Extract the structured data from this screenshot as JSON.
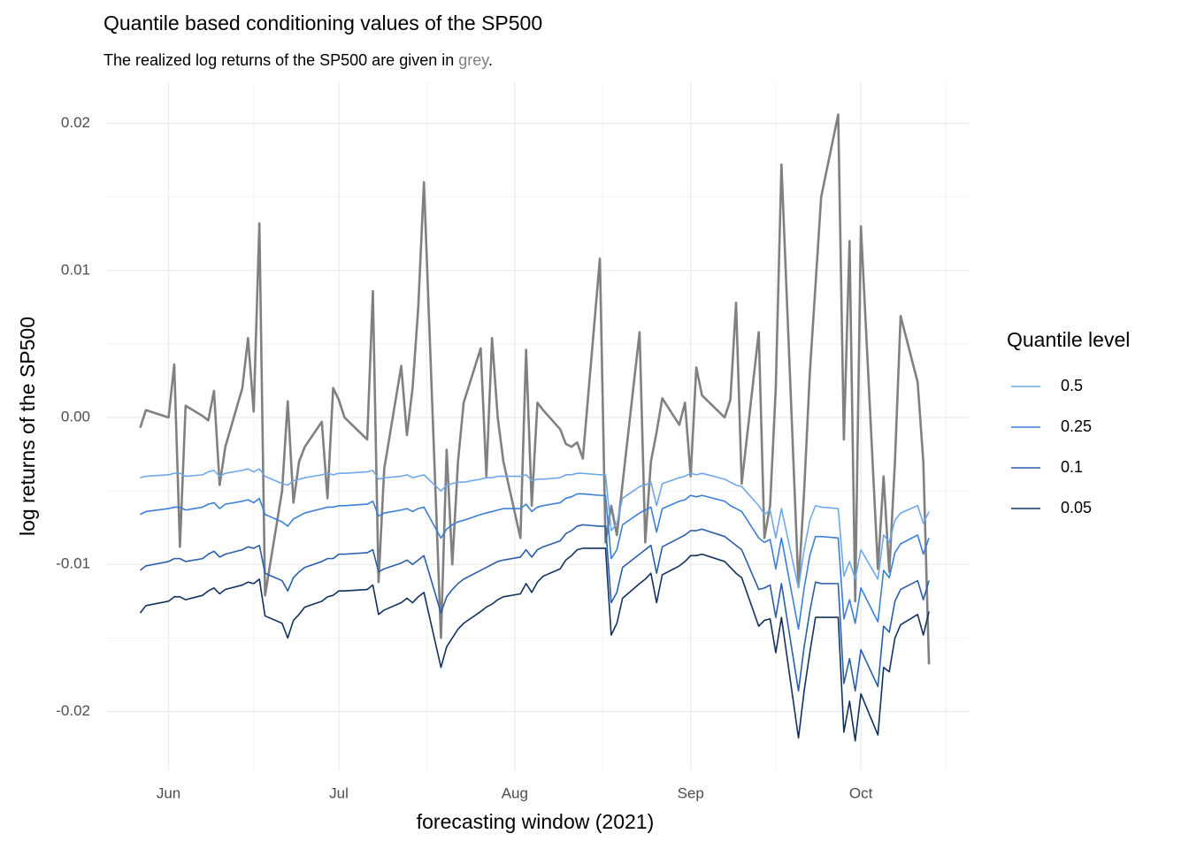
{
  "chart_data": {
    "type": "line",
    "title": "Quantile based conditioning values of the SP500",
    "subtitle": {
      "text": "The realized log returns of the SP500 are given in",
      "highlight": "grey",
      "end": "."
    },
    "xlabel": "forecasting window (2021)",
    "ylabel": "log returns of the SP500",
    "legend_title": "Quantile level",
    "legend": "right",
    "grid": true,
    "xlim": [
      141,
      293
    ],
    "xticks": [
      {
        "value": 152,
        "label": "Jun"
      },
      {
        "value": 182,
        "label": "Jul"
      },
      {
        "value": 213,
        "label": "Aug"
      },
      {
        "value": 244,
        "label": "Sep"
      },
      {
        "value": 274,
        "label": "Oct"
      }
    ],
    "ylim": [
      -0.024,
      0.0228
    ],
    "yticks": [
      -0.02,
      -0.01,
      {
        "value": 0,
        "label": "0.00"
      },
      0.01,
      0.02
    ],
    "x": [
      147,
      148,
      152,
      153,
      154,
      155,
      158,
      159,
      160,
      161,
      162,
      165,
      166,
      167,
      168,
      169,
      172,
      173,
      174,
      175,
      176,
      179,
      180,
      181,
      182,
      183,
      187,
      188,
      189,
      190,
      193,
      194,
      195,
      196,
      197,
      200,
      201,
      202,
      203,
      204,
      207,
      208,
      209,
      210,
      211,
      214,
      215,
      216,
      217,
      218,
      221,
      222,
      223,
      224,
      225,
      228,
      229,
      230,
      231,
      232,
      235,
      236,
      237,
      238,
      239,
      242,
      243,
      244,
      245,
      246,
      250,
      251,
      252,
      253,
      256,
      257,
      258,
      259,
      260,
      263,
      264,
      265,
      266,
      267,
      270,
      271,
      272,
      273,
      274,
      277,
      278,
      279,
      280,
      281,
      284,
      285,
      286
    ],
    "realized": {
      "color": "#808080",
      "values": [
        -0.0007,
        0.0005,
        0.0,
        0.0036,
        -0.0088,
        0.0008,
        0.0001,
        -0.0002,
        0.0018,
        -0.0046,
        -0.002,
        0.002,
        0.0054,
        0.0004,
        0.0132,
        -0.0121,
        -0.005,
        0.0011,
        -0.0058,
        -0.003,
        -0.002,
        -0.0003,
        -0.0055,
        0.002,
        0.0012,
        0.0,
        -0.0015,
        0.0086,
        -0.0112,
        -0.0035,
        0.0035,
        -0.0012,
        0.002,
        0.0075,
        0.016,
        -0.015,
        -0.0022,
        -0.01,
        -0.003,
        0.001,
        0.0047,
        -0.004,
        0.0054,
        0.0,
        -0.003,
        -0.0082,
        0.0046,
        -0.006,
        0.001,
        0.0005,
        -0.0008,
        -0.0018,
        -0.002,
        -0.0017,
        -0.0028,
        0.0108,
        -0.0085,
        -0.006,
        -0.008,
        -0.0045,
        0.0058,
        -0.0085,
        -0.003,
        -0.001,
        0.0013,
        -0.0005,
        0.001,
        -0.004,
        0.0034,
        0.0015,
        0.0,
        0.0012,
        0.0078,
        -0.0045,
        0.0058,
        -0.0082,
        -0.006,
        0.002,
        0.0172,
        -0.0115,
        -0.005,
        0.003,
        0.009,
        0.015,
        0.0206,
        -0.0015,
        0.012,
        -0.0125,
        0.013,
        -0.0103,
        -0.004,
        -0.0105,
        -0.003,
        0.0069,
        0.0024,
        -0.003,
        -0.0168
      ]
    },
    "series": [
      {
        "name": "0.5",
        "color": "#6fa8e8",
        "values": [
          -0.0041,
          -0.004,
          -0.0039,
          -0.0038,
          -0.0038,
          -0.004,
          -0.0039,
          -0.0037,
          -0.0036,
          -0.004,
          -0.0038,
          -0.0036,
          -0.0035,
          -0.0037,
          -0.0035,
          -0.004,
          -0.0045,
          -0.0046,
          -0.0043,
          -0.0042,
          -0.0041,
          -0.0039,
          -0.0038,
          -0.0039,
          -0.0038,
          -0.0038,
          -0.0037,
          -0.0036,
          -0.0042,
          -0.0041,
          -0.004,
          -0.0039,
          -0.0041,
          -0.004,
          -0.0039,
          -0.005,
          -0.0046,
          -0.0045,
          -0.0044,
          -0.0044,
          -0.0042,
          -0.0041,
          -0.0041,
          -0.004,
          -0.004,
          -0.004,
          -0.0039,
          -0.0043,
          -0.0042,
          -0.0042,
          -0.0041,
          -0.0039,
          -0.0039,
          -0.0038,
          -0.0038,
          -0.0039,
          -0.0039,
          -0.0077,
          -0.0072,
          -0.0055,
          -0.0047,
          -0.0046,
          -0.0044,
          -0.006,
          -0.0045,
          -0.0041,
          -0.004,
          -0.0038,
          -0.0039,
          -0.0038,
          -0.0042,
          -0.0044,
          -0.0046,
          -0.0047,
          -0.006,
          -0.0066,
          -0.0063,
          -0.0082,
          -0.0062,
          -0.0116,
          -0.009,
          -0.007,
          -0.006,
          -0.0061,
          -0.0062,
          -0.0108,
          -0.0098,
          -0.011,
          -0.009,
          -0.011,
          -0.008,
          -0.0085,
          -0.007,
          -0.0065,
          -0.006,
          -0.0072,
          -0.0064
        ]
      },
      {
        "name": "0.25",
        "color": "#3a7fd5",
        "values": [
          -0.0066,
          -0.0064,
          -0.0062,
          -0.0061,
          -0.0061,
          -0.0063,
          -0.0061,
          -0.0059,
          -0.0058,
          -0.0062,
          -0.0059,
          -0.0057,
          -0.0056,
          -0.0058,
          -0.0055,
          -0.0066,
          -0.0071,
          -0.0074,
          -0.0069,
          -0.0067,
          -0.0065,
          -0.0062,
          -0.0061,
          -0.0061,
          -0.006,
          -0.006,
          -0.0059,
          -0.0057,
          -0.0067,
          -0.0065,
          -0.0063,
          -0.0062,
          -0.0064,
          -0.0062,
          -0.0061,
          -0.0082,
          -0.0076,
          -0.0073,
          -0.0071,
          -0.007,
          -0.0066,
          -0.0065,
          -0.0064,
          -0.0063,
          -0.0062,
          -0.0062,
          -0.0059,
          -0.0064,
          -0.0061,
          -0.006,
          -0.0058,
          -0.0055,
          -0.0054,
          -0.0052,
          -0.0052,
          -0.0053,
          -0.0053,
          -0.0096,
          -0.009,
          -0.0073,
          -0.0065,
          -0.0063,
          -0.0061,
          -0.0078,
          -0.0062,
          -0.0057,
          -0.0056,
          -0.0053,
          -0.0054,
          -0.0053,
          -0.0057,
          -0.006,
          -0.0062,
          -0.0064,
          -0.0082,
          -0.0085,
          -0.0083,
          -0.0103,
          -0.0082,
          -0.0144,
          -0.0116,
          -0.0094,
          -0.0081,
          -0.0081,
          -0.0082,
          -0.0137,
          -0.0124,
          -0.014,
          -0.0116,
          -0.0139,
          -0.0104,
          -0.0109,
          -0.0092,
          -0.0086,
          -0.008,
          -0.0093,
          -0.0082
        ]
      },
      {
        "name": "0.1",
        "color": "#2a5ea8",
        "values": [
          -0.0104,
          -0.0101,
          -0.0098,
          -0.0096,
          -0.0096,
          -0.0098,
          -0.0096,
          -0.0093,
          -0.0091,
          -0.0095,
          -0.0093,
          -0.009,
          -0.0088,
          -0.0089,
          -0.0087,
          -0.0106,
          -0.0111,
          -0.0118,
          -0.0109,
          -0.0105,
          -0.0102,
          -0.0098,
          -0.0096,
          -0.0096,
          -0.0093,
          -0.0093,
          -0.0092,
          -0.009,
          -0.0105,
          -0.0103,
          -0.0099,
          -0.0097,
          -0.01,
          -0.0097,
          -0.0094,
          -0.0133,
          -0.0122,
          -0.0117,
          -0.0113,
          -0.011,
          -0.0104,
          -0.0102,
          -0.01,
          -0.0098,
          -0.0097,
          -0.0095,
          -0.009,
          -0.0095,
          -0.009,
          -0.0088,
          -0.0084,
          -0.0079,
          -0.0077,
          -0.0074,
          -0.0073,
          -0.0074,
          -0.0074,
          -0.0126,
          -0.0119,
          -0.0102,
          -0.0093,
          -0.009,
          -0.0087,
          -0.0106,
          -0.0088,
          -0.0082,
          -0.008,
          -0.0077,
          -0.0077,
          -0.0076,
          -0.0081,
          -0.0084,
          -0.0087,
          -0.009,
          -0.0117,
          -0.0116,
          -0.0114,
          -0.0136,
          -0.0113,
          -0.0186,
          -0.0156,
          -0.0132,
          -0.0112,
          -0.0113,
          -0.0113,
          -0.0181,
          -0.0164,
          -0.0186,
          -0.0158,
          -0.0183,
          -0.0142,
          -0.0146,
          -0.0125,
          -0.0117,
          -0.0111,
          -0.0124,
          -0.0111
        ]
      },
      {
        "name": "0.05",
        "color": "#12315e",
        "values": [
          -0.0133,
          -0.0128,
          -0.0125,
          -0.0122,
          -0.0122,
          -0.0124,
          -0.0121,
          -0.0118,
          -0.0116,
          -0.012,
          -0.0117,
          -0.0114,
          -0.0112,
          -0.0113,
          -0.011,
          -0.0135,
          -0.014,
          -0.015,
          -0.0138,
          -0.0134,
          -0.0129,
          -0.0125,
          -0.0122,
          -0.0121,
          -0.0118,
          -0.0118,
          -0.0117,
          -0.0114,
          -0.0134,
          -0.0131,
          -0.0126,
          -0.0123,
          -0.0126,
          -0.0122,
          -0.0119,
          -0.017,
          -0.0156,
          -0.015,
          -0.0144,
          -0.014,
          -0.0132,
          -0.0129,
          -0.0127,
          -0.0124,
          -0.0122,
          -0.012,
          -0.0113,
          -0.0119,
          -0.0112,
          -0.0108,
          -0.0103,
          -0.0097,
          -0.0094,
          -0.009,
          -0.0089,
          -0.0089,
          -0.0089,
          -0.0148,
          -0.014,
          -0.0123,
          -0.0113,
          -0.011,
          -0.0106,
          -0.0126,
          -0.0107,
          -0.0101,
          -0.0098,
          -0.0094,
          -0.0094,
          -0.0093,
          -0.0098,
          -0.0102,
          -0.0106,
          -0.0109,
          -0.0142,
          -0.0138,
          -0.0137,
          -0.016,
          -0.0136,
          -0.0218,
          -0.0186,
          -0.016,
          -0.0136,
          -0.0136,
          -0.0136,
          -0.0214,
          -0.0193,
          -0.022,
          -0.0188,
          -0.0216,
          -0.017,
          -0.0173,
          -0.015,
          -0.0141,
          -0.0134,
          -0.0148,
          -0.0132
        ]
      }
    ]
  }
}
